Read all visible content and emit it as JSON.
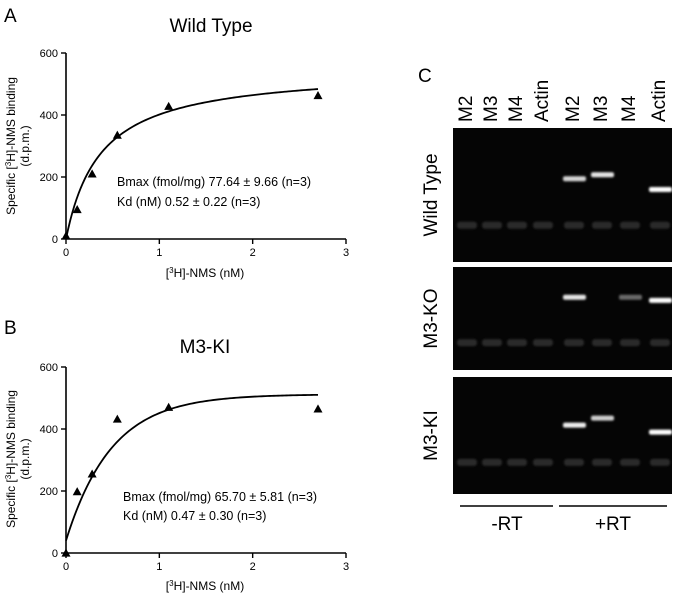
{
  "panels": {
    "a": {
      "letter": "A"
    },
    "b": {
      "letter": "B"
    },
    "c": {
      "letter": "C"
    }
  },
  "chart_data": [
    {
      "type": "scatter",
      "panel": "A",
      "title": "Wild Type",
      "xlabel_prefix": "[",
      "xlabel_sup": "3",
      "xlabel_suffix": "H]-NMS (nM)",
      "ylabel_prefix": "Specific [",
      "ylabel_sup": "3",
      "ylabel_suffix": "H]-NMS binding",
      "ylabel_unit": "(d.p.m.)",
      "xlim": [
        0,
        3
      ],
      "ylim": [
        0,
        600
      ],
      "xticks": [
        0,
        1,
        2,
        3
      ],
      "yticks": [
        0,
        200,
        400,
        600
      ],
      "grid": false,
      "points": [
        {
          "x": 0.0,
          "y": 10
        },
        {
          "x": 0.12,
          "y": 95
        },
        {
          "x": 0.28,
          "y": 210
        },
        {
          "x": 0.55,
          "y": 335
        },
        {
          "x": 1.1,
          "y": 428
        },
        {
          "x": 2.7,
          "y": 463
        }
      ],
      "fit": {
        "model": "one-site hyperbola",
        "bmax": 550,
        "kd": 0.37
      },
      "annotation_line1": "Bmax (fmol/mg) 77.64 ± 9.66 (n=3)",
      "annotation_line2": "Kd (nM) 0.52 ± 0.22 (n=3)"
    },
    {
      "type": "scatter",
      "panel": "B",
      "title": "M3-KI",
      "xlabel_prefix": "[",
      "xlabel_sup": "3",
      "xlabel_suffix": "H]-NMS (nM)",
      "ylabel_prefix": "Specific [",
      "ylabel_sup": "3",
      "ylabel_suffix": "H]-NMS binding",
      "ylabel_unit": "(d.p.m.)",
      "xlim": [
        0,
        3
      ],
      "ylim": [
        0,
        600
      ],
      "xticks": [
        0,
        1,
        2,
        3
      ],
      "yticks": [
        0,
        200,
        400,
        600
      ],
      "grid": false,
      "points": [
        {
          "x": 0.0,
          "y": 0
        },
        {
          "x": 0.12,
          "y": 198
        },
        {
          "x": 0.28,
          "y": 255
        },
        {
          "x": 0.55,
          "y": 432
        },
        {
          "x": 1.1,
          "y": 470
        },
        {
          "x": 2.7,
          "y": 465
        }
      ],
      "fit": {
        "model": "one-phase association",
        "y0": 40,
        "plateau": 512,
        "k": 2.05
      },
      "annotation_line1": "Bmax (fmol/mg) 65.70 ± 5.81 (n=3)",
      "annotation_line2": "Kd (nM) 0.47 ± 0.30 (n=3)"
    }
  ],
  "gel": {
    "lanes": [
      "M2",
      "M3",
      "M4",
      "Actin",
      "M2",
      "M3",
      "M4",
      "Actin"
    ],
    "rows": [
      {
        "label": "Wild Type",
        "bands": [
          0,
          0,
          0,
          0,
          0.75,
          0.85,
          0,
          1.0
        ]
      },
      {
        "label": "M3-KO",
        "bands": [
          0,
          0,
          0,
          0,
          0.85,
          0,
          0.1,
          1.0
        ]
      },
      {
        "label": "M3-KI",
        "bands": [
          0,
          0,
          0,
          0,
          0.9,
          0.7,
          0,
          1.0
        ]
      }
    ],
    "groups": [
      {
        "label": "-RT"
      },
      {
        "label": "+RT"
      }
    ]
  }
}
